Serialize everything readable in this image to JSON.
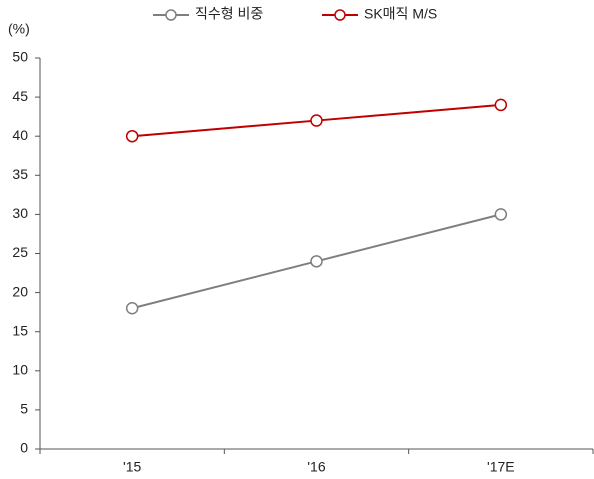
{
  "chart_data": {
    "type": "line",
    "y_label": "(%)",
    "categories": [
      "'15",
      "'16",
      "'17E"
    ],
    "series": [
      {
        "name": "직수형 비중",
        "color": "#7f7f7f",
        "values": [
          18,
          24,
          30
        ]
      },
      {
        "name": "SK매직 M/S",
        "color": "#c00000",
        "values": [
          40,
          42,
          44
        ]
      }
    ],
    "ylim": [
      0,
      50
    ],
    "yticks": [
      0,
      5,
      10,
      15,
      20,
      25,
      30,
      35,
      40,
      45,
      50
    ],
    "grid": false,
    "legend": "top"
  }
}
